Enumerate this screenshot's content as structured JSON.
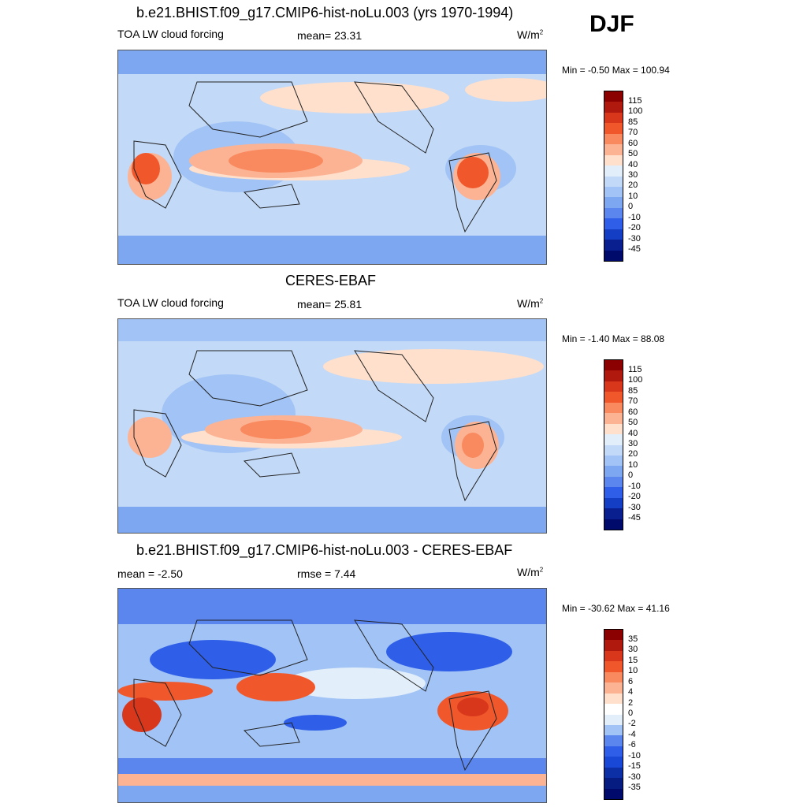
{
  "season": "DJF",
  "panels": [
    {
      "id": "model",
      "title": "b.e21.BHIST.f09_g17.CMIP6-hist-noLu.003 (yrs 1970-1994)",
      "left_label": "TOA LW cloud forcing",
      "center_label": "mean=  23.31",
      "units": "W/m",
      "units_sup": "2",
      "minmax": "Min =  -0.50 Max = 100.94",
      "colorbar_labels": [
        "115",
        "100",
        "85",
        "70",
        "60",
        "50",
        "40",
        "30",
        "20",
        "10",
        "0",
        "-10",
        "-20",
        "-30",
        "-45"
      ],
      "colorbar_colors": [
        "#8b0000",
        "#b0190e",
        "#d8371c",
        "#f0582c",
        "#f98a5f",
        "#fcb394",
        "#fee0cc",
        "#e2eefa",
        "#c2d9f7",
        "#a1c3f5",
        "#7ea7f2",
        "#5a86ee",
        "#2f5fe8",
        "#143ec4",
        "#0a1f8f",
        "#000a6b"
      ]
    },
    {
      "id": "obs",
      "title": "CERES-EBAF",
      "left_label": "TOA LW cloud forcing",
      "center_label": "mean=  25.81",
      "units": "W/m",
      "units_sup": "2",
      "minmax": "Min =  -1.40 Max =  88.08",
      "colorbar_labels": [
        "115",
        "100",
        "85",
        "70",
        "60",
        "50",
        "40",
        "30",
        "20",
        "10",
        "0",
        "-10",
        "-20",
        "-30",
        "-45"
      ],
      "colorbar_colors": [
        "#8b0000",
        "#b0190e",
        "#d8371c",
        "#f0582c",
        "#f98a5f",
        "#fcb394",
        "#fee0cc",
        "#e2eefa",
        "#c2d9f7",
        "#a1c3f5",
        "#7ea7f2",
        "#5a86ee",
        "#2f5fe8",
        "#143ec4",
        "#0a1f8f",
        "#000a6b"
      ]
    },
    {
      "id": "diff",
      "title": "b.e21.BHIST.f09_g17.CMIP6-hist-noLu.003 - CERES-EBAF",
      "left_label": "mean =  -2.50",
      "center_label": "rmse =   7.44",
      "units": "W/m",
      "units_sup": "2",
      "minmax": "Min = -30.62 Max =  41.16",
      "colorbar_labels": [
        "35",
        "30",
        "15",
        "10",
        "6",
        "4",
        "2",
        "0",
        "-2",
        "-4",
        "-6",
        "-10",
        "-15",
        "-30",
        "-35"
      ],
      "colorbar_colors": [
        "#8b0000",
        "#b0190e",
        "#d8371c",
        "#f0582c",
        "#f98a5f",
        "#fcb394",
        "#fee0cc",
        "#ffffff",
        "#e2eefa",
        "#a1c3f5",
        "#5a86ee",
        "#2f5fe8",
        "#1a48d6",
        "#0d2fa6",
        "#061c80",
        "#000a6b"
      ]
    }
  ]
}
